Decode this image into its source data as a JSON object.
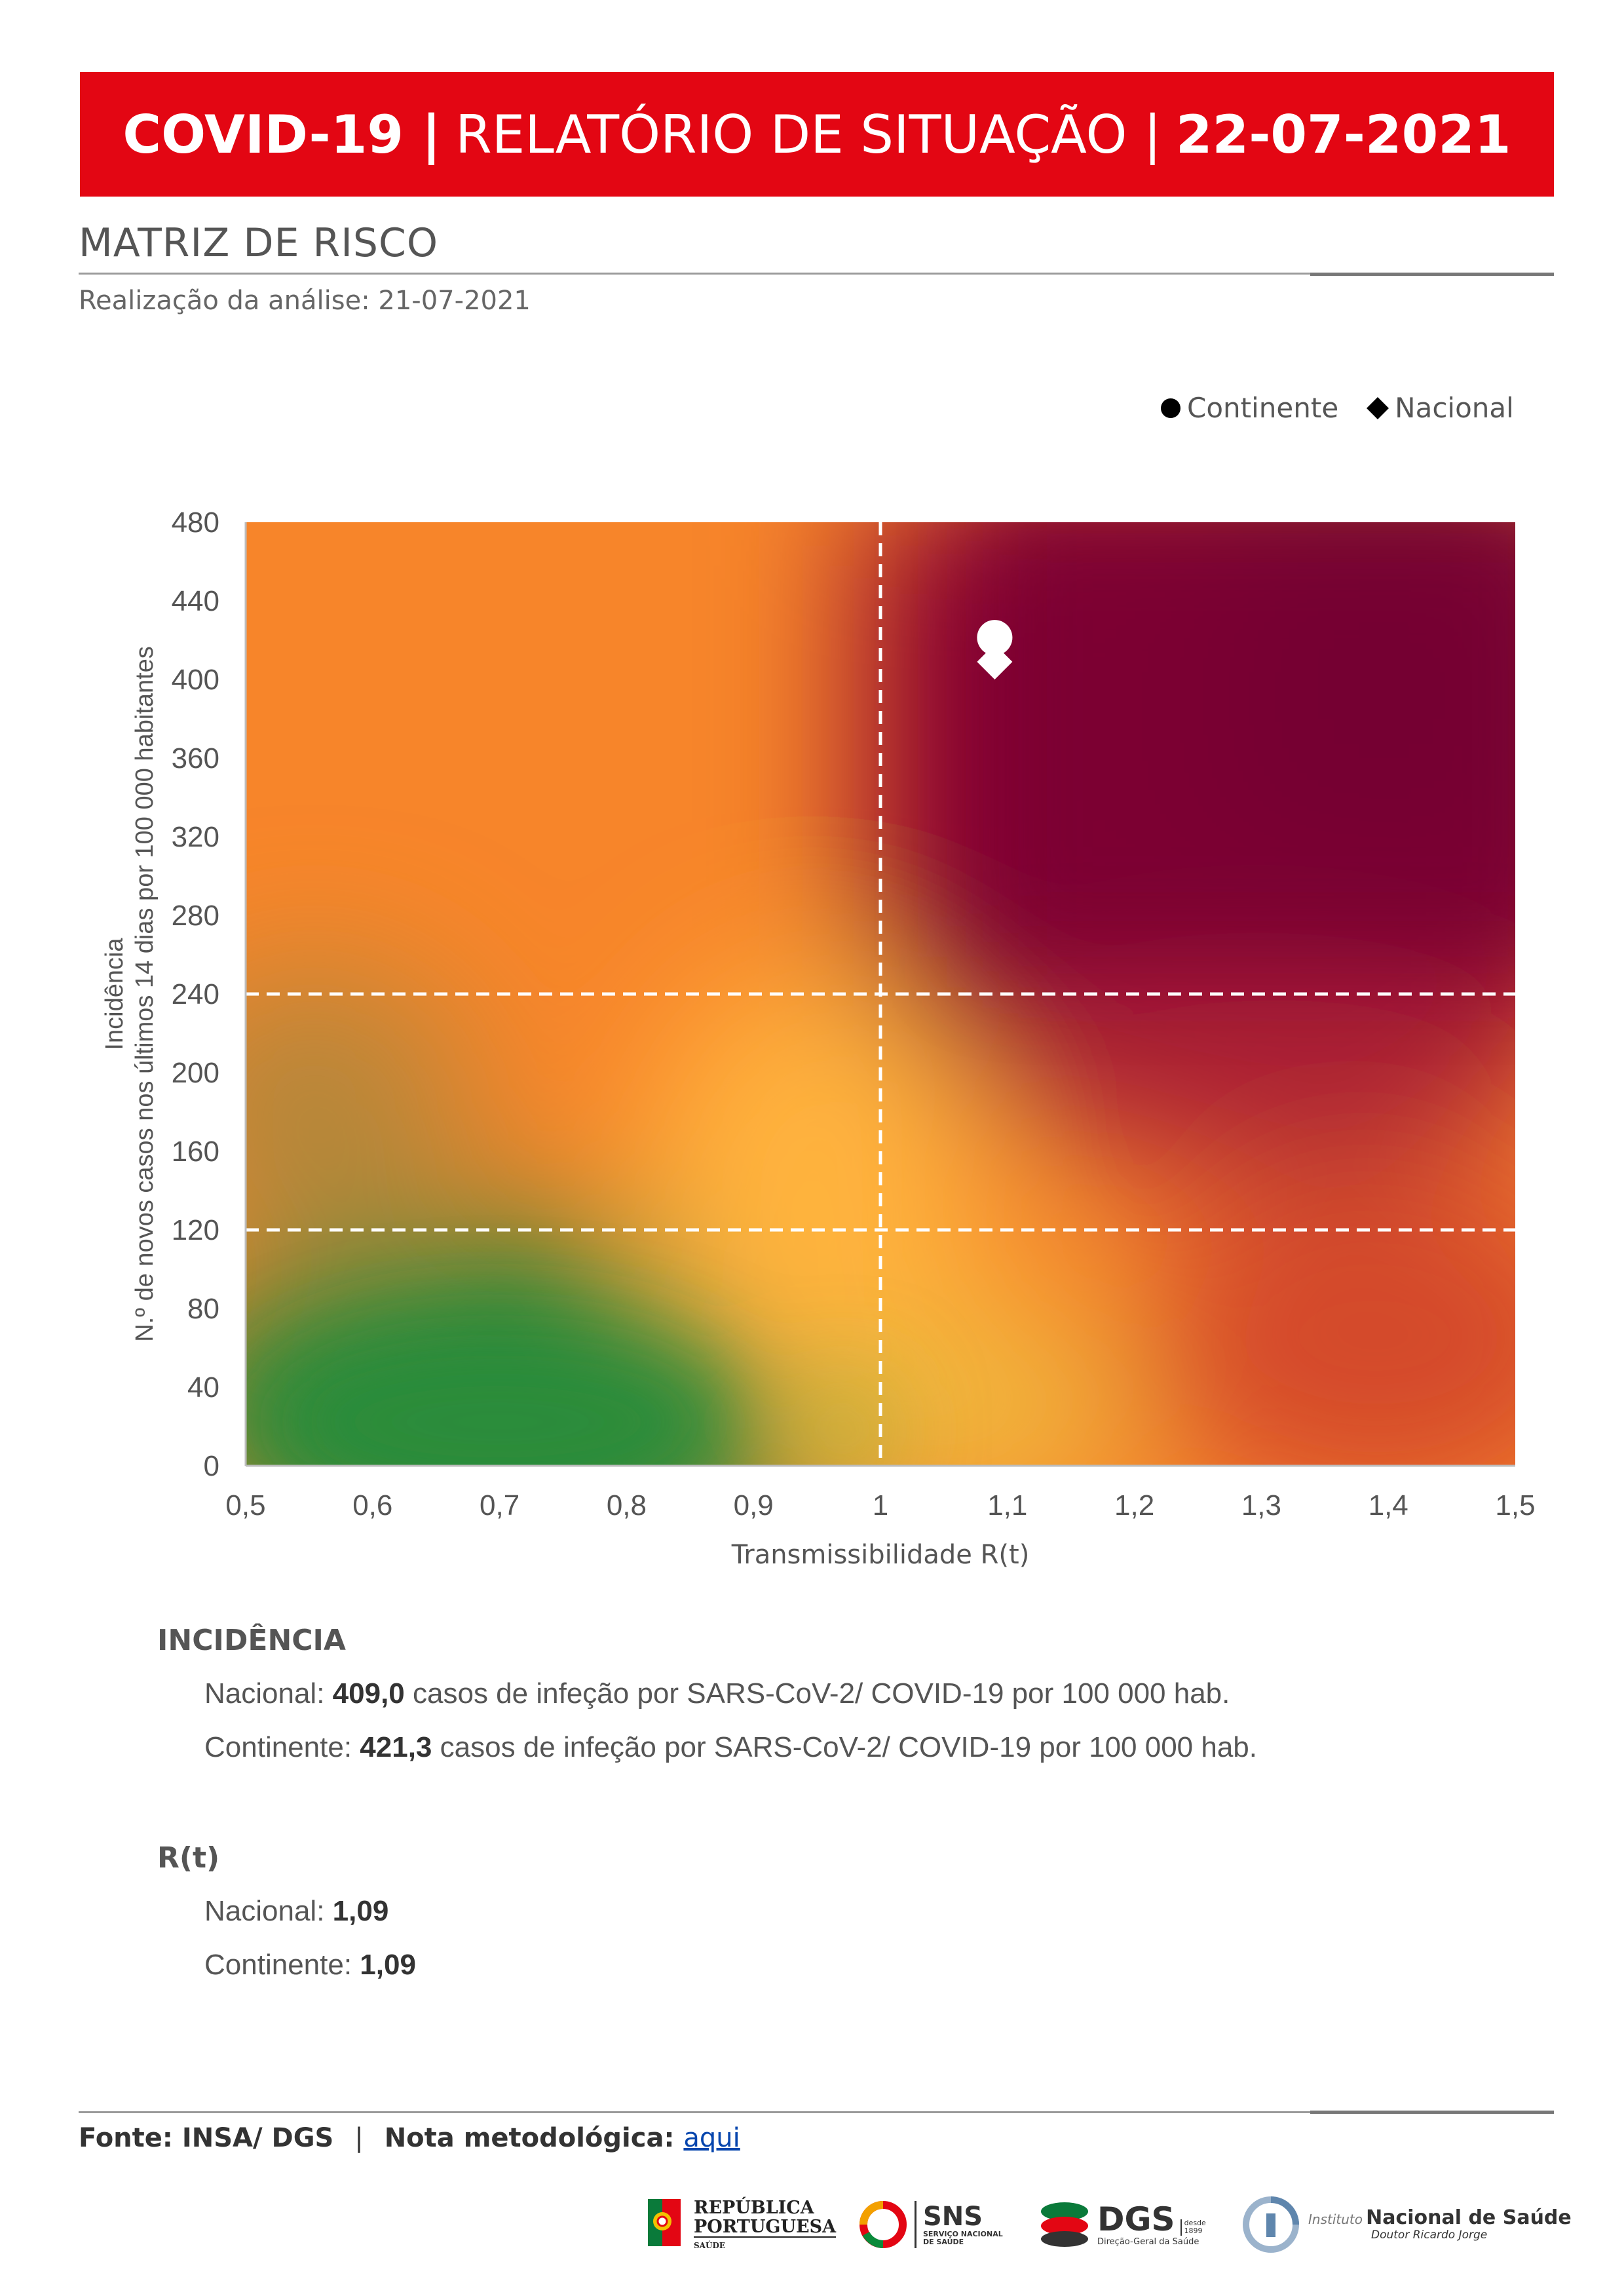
{
  "header": {
    "part1": "COVID-19 |",
    "part2": "RELATÓRIO DE SITUAÇÃO |",
    "part3": "22-07-2021"
  },
  "section": {
    "title": "MATRIZ DE RISCO",
    "analysis_date": "Realização da análise: 21-07-2021"
  },
  "legend": {
    "continente": "Continente",
    "nacional": "Nacional"
  },
  "chart_data": {
    "type": "scatter",
    "title": "",
    "xlabel": "Transmissibilidade R(t)",
    "ylabel_line1": "Incidência",
    "ylabel_line2": "N.º de novos casos nos últimos 14 dias por 100 000 habitantes",
    "xlim": [
      0.5,
      1.5
    ],
    "ylim": [
      0,
      480
    ],
    "x_ticks": [
      "0,5",
      "0,6",
      "0,7",
      "0,8",
      "0,9",
      "1",
      "1,1",
      "1,2",
      "1,3",
      "1,4",
      "1,5"
    ],
    "y_ticks": [
      "0",
      "40",
      "80",
      "120",
      "160",
      "200",
      "240",
      "280",
      "320",
      "360",
      "400",
      "440",
      "480"
    ],
    "reference_lines": {
      "x": [
        1
      ],
      "y": [
        120,
        240
      ]
    },
    "series": [
      {
        "name": "Continente",
        "marker": "circle",
        "x": 1.09,
        "y": 421.3
      },
      {
        "name": "Nacional",
        "marker": "diamond",
        "x": 1.09,
        "y": 409.0
      }
    ]
  },
  "incidencia": {
    "title": "INCIDÊNCIA",
    "nacional_label": "Nacional:",
    "nacional_value": "409,0",
    "nacional_suffix": "casos de infeção por SARS-CoV-2/ COVID-19 por 100 000 hab.",
    "continente_label": "Continente:",
    "continente_value": "421,3",
    "continente_suffix": "casos de infeção por SARS-CoV-2/ COVID-19 por 100 000 hab."
  },
  "rt": {
    "title": "R(t)",
    "nacional_label": "Nacional:",
    "nacional_value": "1,09",
    "continente_label": "Continente:",
    "continente_value": "1,09"
  },
  "footer": {
    "source": "Fonte: INSA/ DGS",
    "separator": "|",
    "note_label": "Nota metodológica:",
    "note_link": "aqui"
  },
  "logos": {
    "republica_line1": "REPÚBLICA",
    "republica_line2": "PORTUGUESA",
    "republica_line3": "SAÚDE",
    "sns_title": "SNS",
    "sns_line1": "SERVIÇO NACIONAL",
    "sns_line2": "DE SAÚDE",
    "dgs_title": "DGS",
    "dgs_since": "desde",
    "dgs_year": "1899",
    "dgs_sub": "Direção-Geral da Saúde",
    "insa_prefix": "Instituto",
    "insa_title": "Nacional de Saúde",
    "insa_sub": "Doutor Ricardo Jorge"
  }
}
